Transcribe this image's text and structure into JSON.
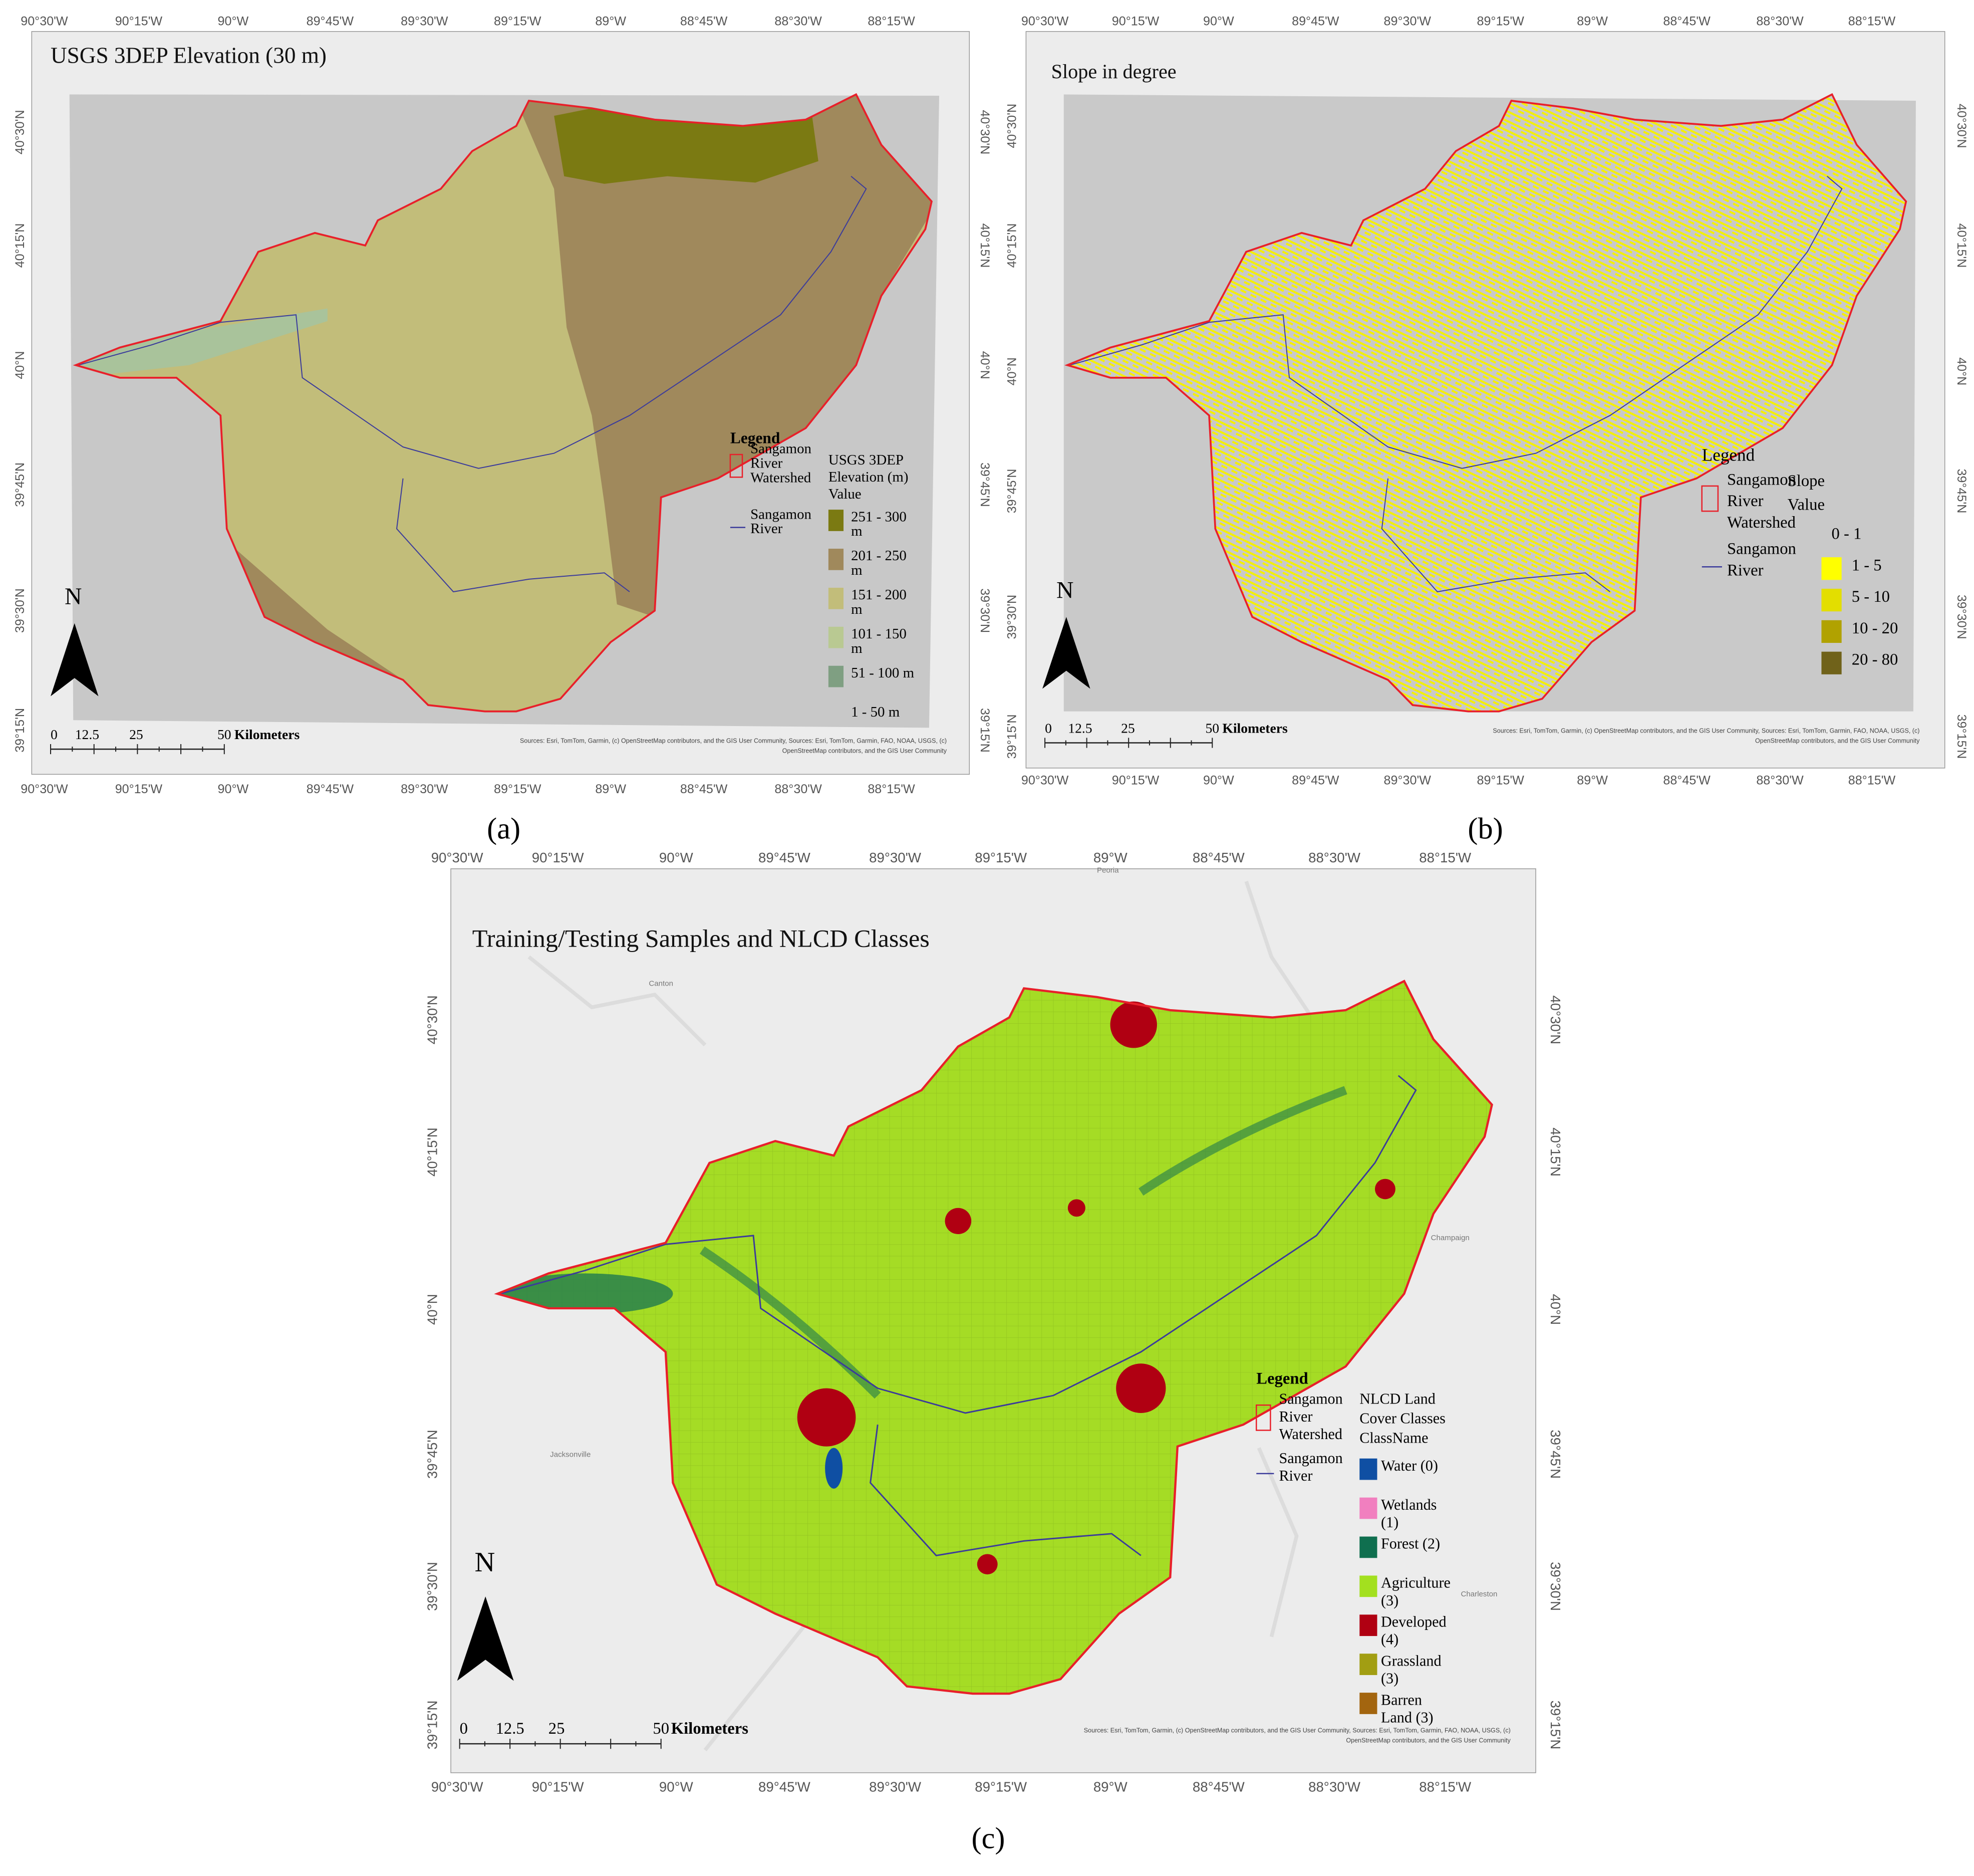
{
  "panels": [
    {
      "title": "USGS 3DEP Elevation (30 m)",
      "lon_ticks": [
        "90°30'W",
        "90°15'W",
        "90°W",
        "89°45'W",
        "89°30'W",
        "89°15'W",
        "89°W",
        "88°45'W",
        "88°30'W",
        "88°15'W"
      ],
      "lat_ticks": [
        "40°30'N",
        "40°15'N",
        "40°N",
        "39°45'N",
        "39°30'N",
        "39°15'N"
      ],
      "legend": {
        "title": "Legend",
        "watershed": [
          "Sangamon",
          "River",
          "Watershed"
        ],
        "river": [
          "Sangamon",
          "River"
        ],
        "value_title": [
          "USGS 3DEP",
          "Elevation (m)",
          "Value"
        ],
        "items": [
          {
            "label": [
              "251 - 300",
              "m"
            ],
            "color": "#7b7a12"
          },
          {
            "label": [
              "201 - 250",
              "m"
            ],
            "color": "#a0895c"
          },
          {
            "label": [
              "151 - 200",
              "m"
            ],
            "color": "#c2bd7a"
          },
          {
            "label": [
              "101 - 150",
              "m"
            ],
            "color": "#b9c992"
          },
          {
            "label": [
              "51 - 100 m"
            ],
            "color": "#7f9f82"
          },
          {
            "label": [
              "1 - 50 m"
            ]
          }
        ]
      },
      "scale": {
        "labels": [
          "0",
          "12.5",
          "25",
          "50"
        ],
        "unit": "Kilometers"
      },
      "north": "N",
      "sources": [
        "Sources: Esri, TomTom, Garmin, (c) OpenStreetMap contributors, and the GIS User Community, Sources: Esri, TomTom, Garmin, FAO, NOAA, USGS, (c)",
        "OpenStreetMap contributors, and the GIS User Community"
      ],
      "caption": "(a)"
    },
    {
      "title": "Slope in degree",
      "lon_ticks": [
        "90°30'W",
        "90°15'W",
        "90°W",
        "89°45'W",
        "89°30'W",
        "89°15'W",
        "89°W",
        "88°45'W",
        "88°30'W",
        "88°15'W"
      ],
      "lat_ticks": [
        "40°30'N",
        "40°15'N",
        "40°N",
        "39°45'N",
        "39°30'N",
        "39°15'N"
      ],
      "legend": {
        "title": "Legend",
        "watershed": [
          "Sangamon",
          "River",
          "Watershed"
        ],
        "river": [
          "Sangamon",
          "River"
        ],
        "value_title": [
          "Slope",
          "Value"
        ],
        "items": [
          {
            "label": [
              "0 - 1"
            ]
          },
          {
            "label": [
              "1 - 5"
            ],
            "color": "#ffff00"
          },
          {
            "label": [
              "5 - 10"
            ],
            "color": "#e3de00"
          },
          {
            "label": [
              "10 - 20"
            ],
            "color": "#b1a200"
          },
          {
            "label": [
              "20 - 80"
            ],
            "color": "#70621a"
          }
        ]
      },
      "scale": {
        "labels": [
          "0",
          "12.5",
          "25",
          "50"
        ],
        "unit": "Kilometers"
      },
      "north": "N",
      "sources": [
        "Sources: Esri, TomTom, Garmin, (c) OpenStreetMap contributors, and the GIS User Community, Sources: Esri, TomTom, Garmin, FAO, NOAA, USGS, (c)",
        "OpenStreetMap contributors, and the GIS User Community"
      ],
      "caption": "(b)"
    },
    {
      "title": "Training/Testing Samples and NLCD Classes",
      "lon_ticks": [
        "90°30'W",
        "90°15'W",
        "90°W",
        "89°45'W",
        "89°30'W",
        "89°15'W",
        "89°W",
        "88°45'W",
        "88°30'W",
        "88°15'W"
      ],
      "lat_ticks": [
        "40°30'N",
        "40°15'N",
        "40°N",
        "39°45'N",
        "39°30'N",
        "39°15'N"
      ],
      "legend": {
        "title": "Legend",
        "watershed": [
          "Sangamon",
          "River",
          "Watershed"
        ],
        "river": [
          "Sangamon",
          "River"
        ],
        "value_title": [
          "NLCD Land",
          "Cover Classes",
          "ClassName"
        ],
        "items": [
          {
            "label": [
              "Water (0)"
            ],
            "color": "#0f4fa3"
          },
          {
            "label": [
              "Wetlands",
              "(1)"
            ],
            "color": "#f17fbf"
          },
          {
            "label": [
              "Forest (2)"
            ],
            "color": "#0f6f4f"
          },
          {
            "label": [
              "Agriculture",
              "(3)"
            ],
            "color": "#a3e01f"
          },
          {
            "label": [
              "Developed",
              "(4)"
            ],
            "color": "#b00012"
          },
          {
            "label": [
              "Grassland",
              "(3)"
            ],
            "color": "#a29e12"
          },
          {
            "label": [
              "Barren",
              "Land (3)"
            ],
            "color": "#a3650f"
          }
        ]
      },
      "scale": {
        "labels": [
          "0",
          "12.5",
          "25",
          "50"
        ],
        "unit": "Kilometers"
      },
      "north": "N",
      "sources": [
        "Sources: Esri, TomTom, Garmin, (c) OpenStreetMap contributors, and the GIS User Community, Sources: Esri, TomTom, Garmin, FAO, NOAA, USGS, (c)",
        "OpenStreetMap contributors, and the GIS User Community"
      ],
      "places": [
        "Peoria",
        "Canton",
        "Champaign",
        "Jacksonville",
        "Charleston"
      ],
      "caption": "(c)"
    }
  ]
}
